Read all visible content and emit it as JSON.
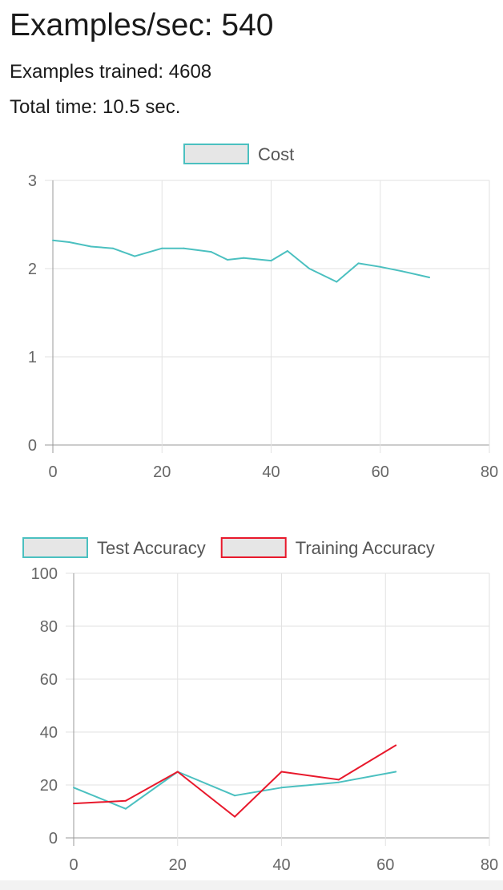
{
  "stats": {
    "examples_per_sec": "Examples/sec: 540",
    "examples_trained": "Examples trained: 4608",
    "total_time": "Total time: 10.5 sec."
  },
  "chart_data": [
    {
      "type": "line",
      "legend_position": "top",
      "grid": true,
      "xlim": [
        0,
        80
      ],
      "ylim": [
        0,
        3
      ],
      "x_ticks": [
        "0",
        "20",
        "40",
        "60",
        "80"
      ],
      "y_ticks": [
        "0",
        "1",
        "2",
        "3"
      ],
      "series": [
        {
          "name": "Cost",
          "color": "#4bc0c0",
          "x": [
            0,
            3,
            7,
            11,
            15,
            20,
            24,
            29,
            32,
            35,
            40,
            43,
            47,
            52,
            56,
            60,
            64,
            69
          ],
          "y": [
            2.32,
            2.3,
            2.25,
            2.23,
            2.14,
            2.23,
            2.23,
            2.19,
            2.1,
            2.12,
            2.09,
            2.2,
            2.0,
            1.85,
            2.06,
            2.02,
            1.97,
            1.9
          ]
        }
      ]
    },
    {
      "type": "line",
      "legend_position": "top",
      "grid": true,
      "xlim": [
        0,
        80
      ],
      "ylim": [
        0,
        100
      ],
      "x_ticks": [
        "0",
        "20",
        "40",
        "60",
        "80"
      ],
      "y_ticks": [
        "0",
        "20",
        "40",
        "60",
        "80",
        "100"
      ],
      "series": [
        {
          "name": "Test Accuracy",
          "color": "#4bc0c0",
          "x": [
            0,
            10,
            20,
            31,
            40,
            51,
            62
          ],
          "y": [
            19,
            11,
            25,
            16,
            19,
            21,
            25
          ]
        },
        {
          "name": "Training Accuracy",
          "color": "#e8192c",
          "x": [
            0,
            10,
            20,
            31,
            40,
            51,
            62
          ],
          "y": [
            13,
            14,
            25,
            8,
            25,
            22,
            35
          ]
        }
      ]
    }
  ]
}
